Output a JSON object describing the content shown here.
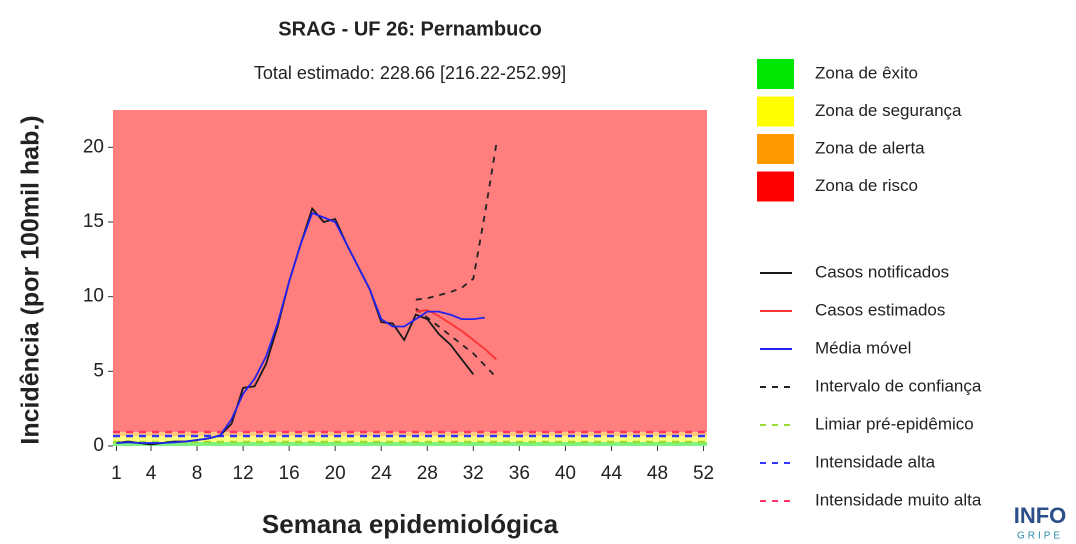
{
  "chart_data": {
    "type": "line",
    "title": "SRAG - UF 26: Pernambuco",
    "subtitle": "Total estimado: 228.66 [216.22-252.99]",
    "xlabel": "Semana epidemiológica",
    "ylabel": "Incidência (por 100mil hab.)",
    "x": [
      1,
      2,
      3,
      4,
      5,
      6,
      7,
      8,
      9,
      10,
      11,
      12,
      13,
      14,
      15,
      16,
      17,
      18,
      19,
      20,
      21,
      22,
      23,
      24,
      25,
      26,
      27,
      28,
      29,
      30,
      31,
      32,
      33,
      34
    ],
    "xlim": [
      0.7,
      52.3
    ],
    "xticks": [
      1,
      4,
      8,
      12,
      16,
      20,
      24,
      28,
      32,
      36,
      40,
      44,
      48,
      52
    ],
    "ylim": [
      0,
      22.5
    ],
    "yticks": [
      0,
      5,
      10,
      15,
      20
    ],
    "zones": [
      {
        "name": "Zona de êxito",
        "color": "#00e600"
      },
      {
        "name": "Zona de segurança",
        "color": "#ffff00"
      },
      {
        "name": "Zona de alerta",
        "color": "#ff9900"
      },
      {
        "name": "Zona de risco",
        "color": "#ff0000"
      }
    ],
    "series": [
      {
        "name": "Casos notificados",
        "color": "#1a1a1a",
        "values": [
          0.2,
          0.3,
          0.2,
          0.1,
          0.2,
          0.3,
          0.3,
          0.4,
          0.5,
          0.7,
          1.5,
          3.9,
          4.0,
          5.5,
          8.0,
          11.0,
          13.5,
          15.9,
          15.0,
          15.2,
          13.5,
          12.0,
          10.5,
          8.3,
          8.2,
          7.1,
          8.8,
          8.5,
          7.5,
          6.8,
          5.8,
          4.8,
          null,
          null
        ]
      },
      {
        "name": "Casos estimados",
        "color": "#ff3333",
        "values": [
          null,
          null,
          null,
          null,
          null,
          null,
          null,
          null,
          null,
          null,
          null,
          null,
          null,
          null,
          null,
          null,
          null,
          null,
          null,
          null,
          null,
          null,
          null,
          null,
          null,
          null,
          9.0,
          9.1,
          8.7,
          8.2,
          7.7,
          7.1,
          6.5,
          5.8
        ]
      },
      {
        "name": "Média móvel",
        "color": "#2222ee",
        "values": [
          0.2,
          0.25,
          0.2,
          0.2,
          0.2,
          0.25,
          0.3,
          0.4,
          0.5,
          0.7,
          1.8,
          3.5,
          4.5,
          6.0,
          8.2,
          11.0,
          13.5,
          15.6,
          15.3,
          15.0,
          13.5,
          12.0,
          10.5,
          8.5,
          8.0,
          8.0,
          8.5,
          9.0,
          9.0,
          8.8,
          8.5,
          8.5,
          8.6,
          null
        ]
      }
    ],
    "interval": {
      "name": "Intervalo de confiança",
      "color": "#222222",
      "upper": [
        null,
        null,
        null,
        null,
        null,
        null,
        null,
        null,
        null,
        null,
        null,
        null,
        null,
        null,
        null,
        null,
        null,
        null,
        null,
        null,
        null,
        null,
        null,
        null,
        null,
        null,
        9.8,
        9.9,
        10.1,
        10.3,
        10.6,
        11.2,
        15.5,
        20.2
      ],
      "lower": [
        null,
        null,
        null,
        null,
        null,
        null,
        null,
        null,
        null,
        null,
        null,
        null,
        null,
        null,
        null,
        null,
        null,
        null,
        null,
        null,
        null,
        null,
        null,
        null,
        null,
        null,
        9.2,
        8.6,
        8.0,
        7.4,
        6.8,
        6.2,
        5.4,
        4.6
      ]
    },
    "thresholds": [
      {
        "name": "Limiar pré-epidêmico",
        "color": "#99dd33",
        "value": 0.27
      },
      {
        "name": "Intensidade alta",
        "color": "#3333ff",
        "value": 0.67
      },
      {
        "name": "Intensidade muito alta",
        "color": "#ff3366",
        "value": 0.94
      }
    ],
    "logo": {
      "main": "INFO",
      "sub": "GRIPE"
    }
  }
}
